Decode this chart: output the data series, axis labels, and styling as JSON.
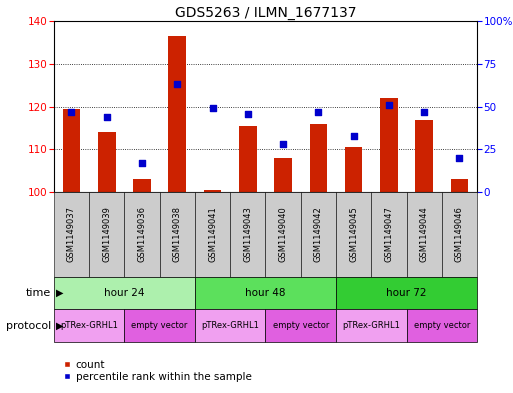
{
  "title": "GDS5263 / ILMN_1677137",
  "samples": [
    "GSM1149037",
    "GSM1149039",
    "GSM1149036",
    "GSM1149038",
    "GSM1149041",
    "GSM1149043",
    "GSM1149040",
    "GSM1149042",
    "GSM1149045",
    "GSM1149047",
    "GSM1149044",
    "GSM1149046"
  ],
  "counts": [
    119.5,
    114.0,
    103.0,
    136.5,
    100.5,
    115.5,
    108.0,
    116.0,
    110.5,
    122.0,
    117.0,
    103.0
  ],
  "percentile_ranks": [
    47,
    44,
    17,
    63,
    49,
    46,
    28,
    47,
    33,
    51,
    47,
    20
  ],
  "ylim_left": [
    100,
    140
  ],
  "ylim_right": [
    0,
    100
  ],
  "yticks_left": [
    100,
    110,
    120,
    130,
    140
  ],
  "yticks_right": [
    0,
    25,
    50,
    75,
    100
  ],
  "ytick_labels_right": [
    "0",
    "25",
    "50",
    "75",
    "100%"
  ],
  "time_groups": [
    {
      "label": "hour 24",
      "start": 0,
      "end": 4,
      "color": "#adf0ad"
    },
    {
      "label": "hour 48",
      "start": 4,
      "end": 8,
      "color": "#5ce05c"
    },
    {
      "label": "hour 72",
      "start": 8,
      "end": 12,
      "color": "#33cc33"
    }
  ],
  "protocol_groups": [
    {
      "label": "pTRex-GRHL1",
      "start": 0,
      "end": 2,
      "color": "#f0a0f0"
    },
    {
      "label": "empty vector",
      "start": 2,
      "end": 4,
      "color": "#e060e0"
    },
    {
      "label": "pTRex-GRHL1",
      "start": 4,
      "end": 6,
      "color": "#f0a0f0"
    },
    {
      "label": "empty vector",
      "start": 6,
      "end": 8,
      "color": "#e060e0"
    },
    {
      "label": "pTRex-GRHL1",
      "start": 8,
      "end": 10,
      "color": "#f0a0f0"
    },
    {
      "label": "empty vector",
      "start": 10,
      "end": 12,
      "color": "#e060e0"
    }
  ],
  "bar_color": "#cc2200",
  "scatter_color": "#0000cc",
  "bar_width": 0.5,
  "sample_bg_color": "#cccccc",
  "title_fontsize": 10,
  "tick_fontsize": 7.5,
  "sample_fontsize": 6,
  "row_fontsize": 7.5,
  "legend_fontsize": 7.5
}
